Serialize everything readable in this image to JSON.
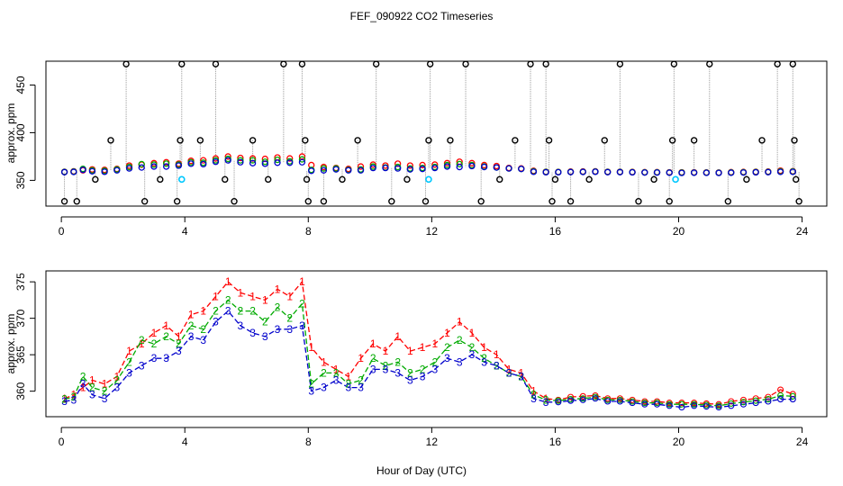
{
  "chart_data": {
    "title": "FEF_090922  CO2 Timeseries",
    "xlabel": "Hour of Day (UTC)",
    "colors": {
      "series1": "#ff0000",
      "series2": "#00aa00",
      "series3": "#0000cc",
      "flagged": "#00c8ff",
      "outlier": "#000000",
      "connector": "#9a9a9a"
    },
    "panels": [
      {
        "type": "scatter",
        "ylabel": "approx. ppm",
        "xlim": [
          -0.5,
          24.8
        ],
        "ylim": [
          323,
          475
        ],
        "xticks": [
          0,
          4,
          8,
          12,
          16,
          20,
          24
        ],
        "yticks": [
          350,
          400,
          450
        ],
        "flagged_points": [
          [
            3.9,
            351
          ],
          [
            11.9,
            351
          ],
          [
            19.9,
            351
          ]
        ],
        "outliers": [
          [
            0.1,
            328
          ],
          [
            0.5,
            328
          ],
          [
            1.1,
            351
          ],
          [
            1.6,
            392
          ],
          [
            2.1,
            472
          ],
          [
            2.7,
            328
          ],
          [
            3.2,
            351
          ],
          [
            3.75,
            328
          ],
          [
            3.85,
            392
          ],
          [
            3.9,
            472
          ],
          [
            4.5,
            392
          ],
          [
            5.0,
            472
          ],
          [
            5.3,
            351
          ],
          [
            5.6,
            328
          ],
          [
            6.2,
            392
          ],
          [
            6.7,
            351
          ],
          [
            7.2,
            472
          ],
          [
            7.8,
            472
          ],
          [
            7.9,
            392
          ],
          [
            7.95,
            351
          ],
          [
            8.0,
            328
          ],
          [
            8.5,
            328
          ],
          [
            9.1,
            351
          ],
          [
            9.6,
            392
          ],
          [
            10.2,
            472
          ],
          [
            10.7,
            328
          ],
          [
            11.2,
            351
          ],
          [
            11.8,
            328
          ],
          [
            11.9,
            392
          ],
          [
            11.95,
            472
          ],
          [
            12.6,
            392
          ],
          [
            13.1,
            472
          ],
          [
            13.6,
            328
          ],
          [
            14.2,
            351
          ],
          [
            14.7,
            392
          ],
          [
            15.2,
            472
          ],
          [
            15.7,
            472
          ],
          [
            15.8,
            392
          ],
          [
            15.9,
            328
          ],
          [
            16.0,
            351
          ],
          [
            16.5,
            328
          ],
          [
            17.1,
            351
          ],
          [
            17.6,
            392
          ],
          [
            18.1,
            472
          ],
          [
            18.7,
            328
          ],
          [
            19.2,
            351
          ],
          [
            19.7,
            328
          ],
          [
            19.8,
            392
          ],
          [
            19.85,
            472
          ],
          [
            20.5,
            392
          ],
          [
            21.0,
            472
          ],
          [
            21.6,
            328
          ],
          [
            22.2,
            351
          ],
          [
            22.7,
            392
          ],
          [
            23.2,
            472
          ],
          [
            23.7,
            472
          ],
          [
            23.75,
            392
          ],
          [
            23.8,
            351
          ],
          [
            23.9,
            328
          ]
        ],
        "series": [
          {
            "name": "1",
            "values": [
              [
                0.1,
                359.0
              ],
              [
                0.4,
                359.5
              ],
              [
                0.7,
                360.5
              ],
              [
                1.0,
                361.5
              ],
              [
                1.4,
                361.0
              ],
              [
                1.8,
                362.0
              ],
              [
                2.2,
                365.5
              ],
              [
                2.6,
                366.5
              ],
              [
                3.0,
                368.0
              ],
              [
                3.4,
                369.0
              ],
              [
                3.8,
                367.5
              ],
              [
                4.2,
                370.5
              ],
              [
                4.6,
                371.0
              ],
              [
                5.0,
                373.0
              ],
              [
                5.4,
                375.0
              ],
              [
                5.8,
                373.5
              ],
              [
                6.2,
                373.0
              ],
              [
                6.6,
                372.5
              ],
              [
                7.0,
                374.0
              ],
              [
                7.4,
                373.0
              ],
              [
                7.8,
                375.0
              ],
              [
                8.1,
                366.0
              ],
              [
                8.5,
                364.0
              ],
              [
                8.9,
                363.0
              ],
              [
                9.3,
                362.0
              ],
              [
                9.7,
                364.5
              ],
              [
                10.1,
                366.5
              ],
              [
                10.5,
                365.5
              ],
              [
                10.9,
                367.5
              ],
              [
                11.3,
                365.5
              ],
              [
                11.7,
                366.0
              ],
              [
                12.1,
                366.5
              ],
              [
                12.5,
                368.0
              ],
              [
                12.9,
                369.5
              ],
              [
                13.3,
                368.0
              ],
              [
                13.7,
                366.0
              ],
              [
                14.1,
                365.0
              ],
              [
                14.5,
                363.0
              ],
              [
                14.9,
                362.5
              ],
              [
                15.3,
                360.0
              ],
              [
                15.7,
                359.0
              ],
              [
                16.1,
                358.8
              ],
              [
                16.5,
                359.2
              ],
              [
                16.9,
                359.3
              ],
              [
                17.3,
                359.4
              ],
              [
                17.7,
                359.0
              ],
              [
                18.1,
                359.0
              ],
              [
                18.5,
                358.8
              ],
              [
                18.9,
                358.6
              ],
              [
                19.3,
                358.6
              ],
              [
                19.7,
                358.4
              ],
              [
                20.1,
                358.4
              ],
              [
                20.5,
                358.4
              ],
              [
                20.9,
                358.3
              ],
              [
                21.3,
                358.2
              ],
              [
                21.7,
                358.6
              ],
              [
                22.1,
                358.8
              ],
              [
                22.5,
                359.0
              ],
              [
                22.9,
                359.2
              ],
              [
                23.3,
                360.2
              ],
              [
                23.7,
                359.6
              ]
            ]
          },
          {
            "name": "2",
            "values": [
              [
                0.1,
                358.9
              ],
              [
                0.4,
                359.2
              ],
              [
                0.7,
                362.0
              ],
              [
                1.0,
                360.5
              ],
              [
                1.4,
                360.0
              ],
              [
                1.8,
                361.5
              ],
              [
                2.2,
                364.0
              ],
              [
                2.6,
                367.0
              ],
              [
                3.0,
                366.5
              ],
              [
                3.4,
                367.5
              ],
              [
                3.8,
                366.5
              ],
              [
                4.2,
                369.0
              ],
              [
                4.6,
                368.5
              ],
              [
                5.0,
                371.0
              ],
              [
                5.4,
                372.5
              ],
              [
                5.8,
                371.0
              ],
              [
                6.2,
                371.0
              ],
              [
                6.6,
                369.5
              ],
              [
                7.0,
                371.5
              ],
              [
                7.4,
                370.0
              ],
              [
                7.8,
                372.0
              ],
              [
                8.1,
                361.0
              ],
              [
                8.5,
                362.5
              ],
              [
                8.9,
                362.5
              ],
              [
                9.3,
                361.0
              ],
              [
                9.7,
                361.5
              ],
              [
                10.1,
                364.5
              ],
              [
                10.5,
                363.5
              ],
              [
                10.9,
                364.0
              ],
              [
                11.3,
                362.5
              ],
              [
                11.7,
                363.0
              ],
              [
                12.1,
                364.0
              ],
              [
                12.5,
                366.0
              ],
              [
                12.9,
                367.0
              ],
              [
                13.3,
                366.0
              ],
              [
                13.7,
                364.5
              ],
              [
                14.1,
                363.5
              ],
              [
                14.5,
                362.5
              ],
              [
                14.9,
                362.0
              ],
              [
                15.3,
                359.5
              ],
              [
                15.7,
                358.8
              ],
              [
                16.1,
                358.7
              ],
              [
                16.5,
                358.9
              ],
              [
                16.9,
                359.0
              ],
              [
                17.3,
                359.2
              ],
              [
                17.7,
                358.8
              ],
              [
                18.1,
                358.8
              ],
              [
                18.5,
                358.6
              ],
              [
                18.9,
                358.4
              ],
              [
                19.3,
                358.4
              ],
              [
                19.7,
                358.2
              ],
              [
                20.1,
                358.2
              ],
              [
                20.5,
                358.2
              ],
              [
                20.9,
                358.1
              ],
              [
                21.3,
                358.0
              ],
              [
                21.7,
                358.3
              ],
              [
                22.1,
                358.5
              ],
              [
                22.5,
                358.7
              ],
              [
                22.9,
                358.9
              ],
              [
                23.3,
                359.4
              ],
              [
                23.7,
                359.3
              ]
            ]
          },
          {
            "name": "3",
            "values": [
              [
                0.1,
                358.6
              ],
              [
                0.4,
                358.8
              ],
              [
                0.7,
                361.0
              ],
              [
                1.0,
                359.5
              ],
              [
                1.4,
                359.0
              ],
              [
                1.8,
                360.5
              ],
              [
                2.2,
                362.5
              ],
              [
                2.6,
                363.5
              ],
              [
                3.0,
                364.5
              ],
              [
                3.4,
                364.5
              ],
              [
                3.8,
                365.5
              ],
              [
                4.2,
                367.5
              ],
              [
                4.6,
                367.0
              ],
              [
                5.0,
                369.5
              ],
              [
                5.4,
                371.0
              ],
              [
                5.8,
                369.0
              ],
              [
                6.2,
                368.0
              ],
              [
                6.6,
                367.5
              ],
              [
                7.0,
                368.5
              ],
              [
                7.4,
                368.5
              ],
              [
                7.8,
                369.0
              ],
              [
                8.1,
                360.0
              ],
              [
                8.5,
                360.5
              ],
              [
                8.9,
                361.5
              ],
              [
                9.3,
                360.5
              ],
              [
                9.7,
                360.5
              ],
              [
                10.1,
                363.0
              ],
              [
                10.5,
                363.0
              ],
              [
                10.9,
                362.5
              ],
              [
                11.3,
                361.5
              ],
              [
                11.7,
                362.0
              ],
              [
                12.1,
                363.0
              ],
              [
                12.5,
                364.5
              ],
              [
                12.9,
                364.0
              ],
              [
                13.3,
                365.0
              ],
              [
                13.7,
                364.0
              ],
              [
                14.1,
                363.5
              ],
              [
                14.5,
                362.5
              ],
              [
                14.9,
                362.0
              ],
              [
                15.3,
                359.0
              ],
              [
                15.7,
                358.5
              ],
              [
                16.1,
                358.5
              ],
              [
                16.5,
                358.7
              ],
              [
                16.9,
                358.8
              ],
              [
                17.3,
                359.0
              ],
              [
                17.7,
                358.6
              ],
              [
                18.1,
                358.6
              ],
              [
                18.5,
                358.4
              ],
              [
                18.9,
                358.2
              ],
              [
                19.3,
                358.2
              ],
              [
                19.7,
                358.0
              ],
              [
                20.1,
                357.8
              ],
              [
                20.5,
                358.0
              ],
              [
                20.9,
                357.9
              ],
              [
                21.3,
                357.8
              ],
              [
                21.7,
                358.0
              ],
              [
                22.1,
                358.2
              ],
              [
                22.5,
                358.4
              ],
              [
                22.9,
                358.6
              ],
              [
                23.3,
                358.9
              ],
              [
                23.7,
                358.9
              ]
            ]
          }
        ]
      },
      {
        "type": "line",
        "ylabel": "approx. ppm",
        "xlim": [
          -0.5,
          24.8
        ],
        "ylim": [
          356.5,
          376.5
        ],
        "xticks": [
          0,
          4,
          8,
          12,
          16,
          20,
          24
        ],
        "yticks": [
          360,
          365,
          370,
          375
        ],
        "series_ref": "panels.0.series"
      }
    ]
  }
}
